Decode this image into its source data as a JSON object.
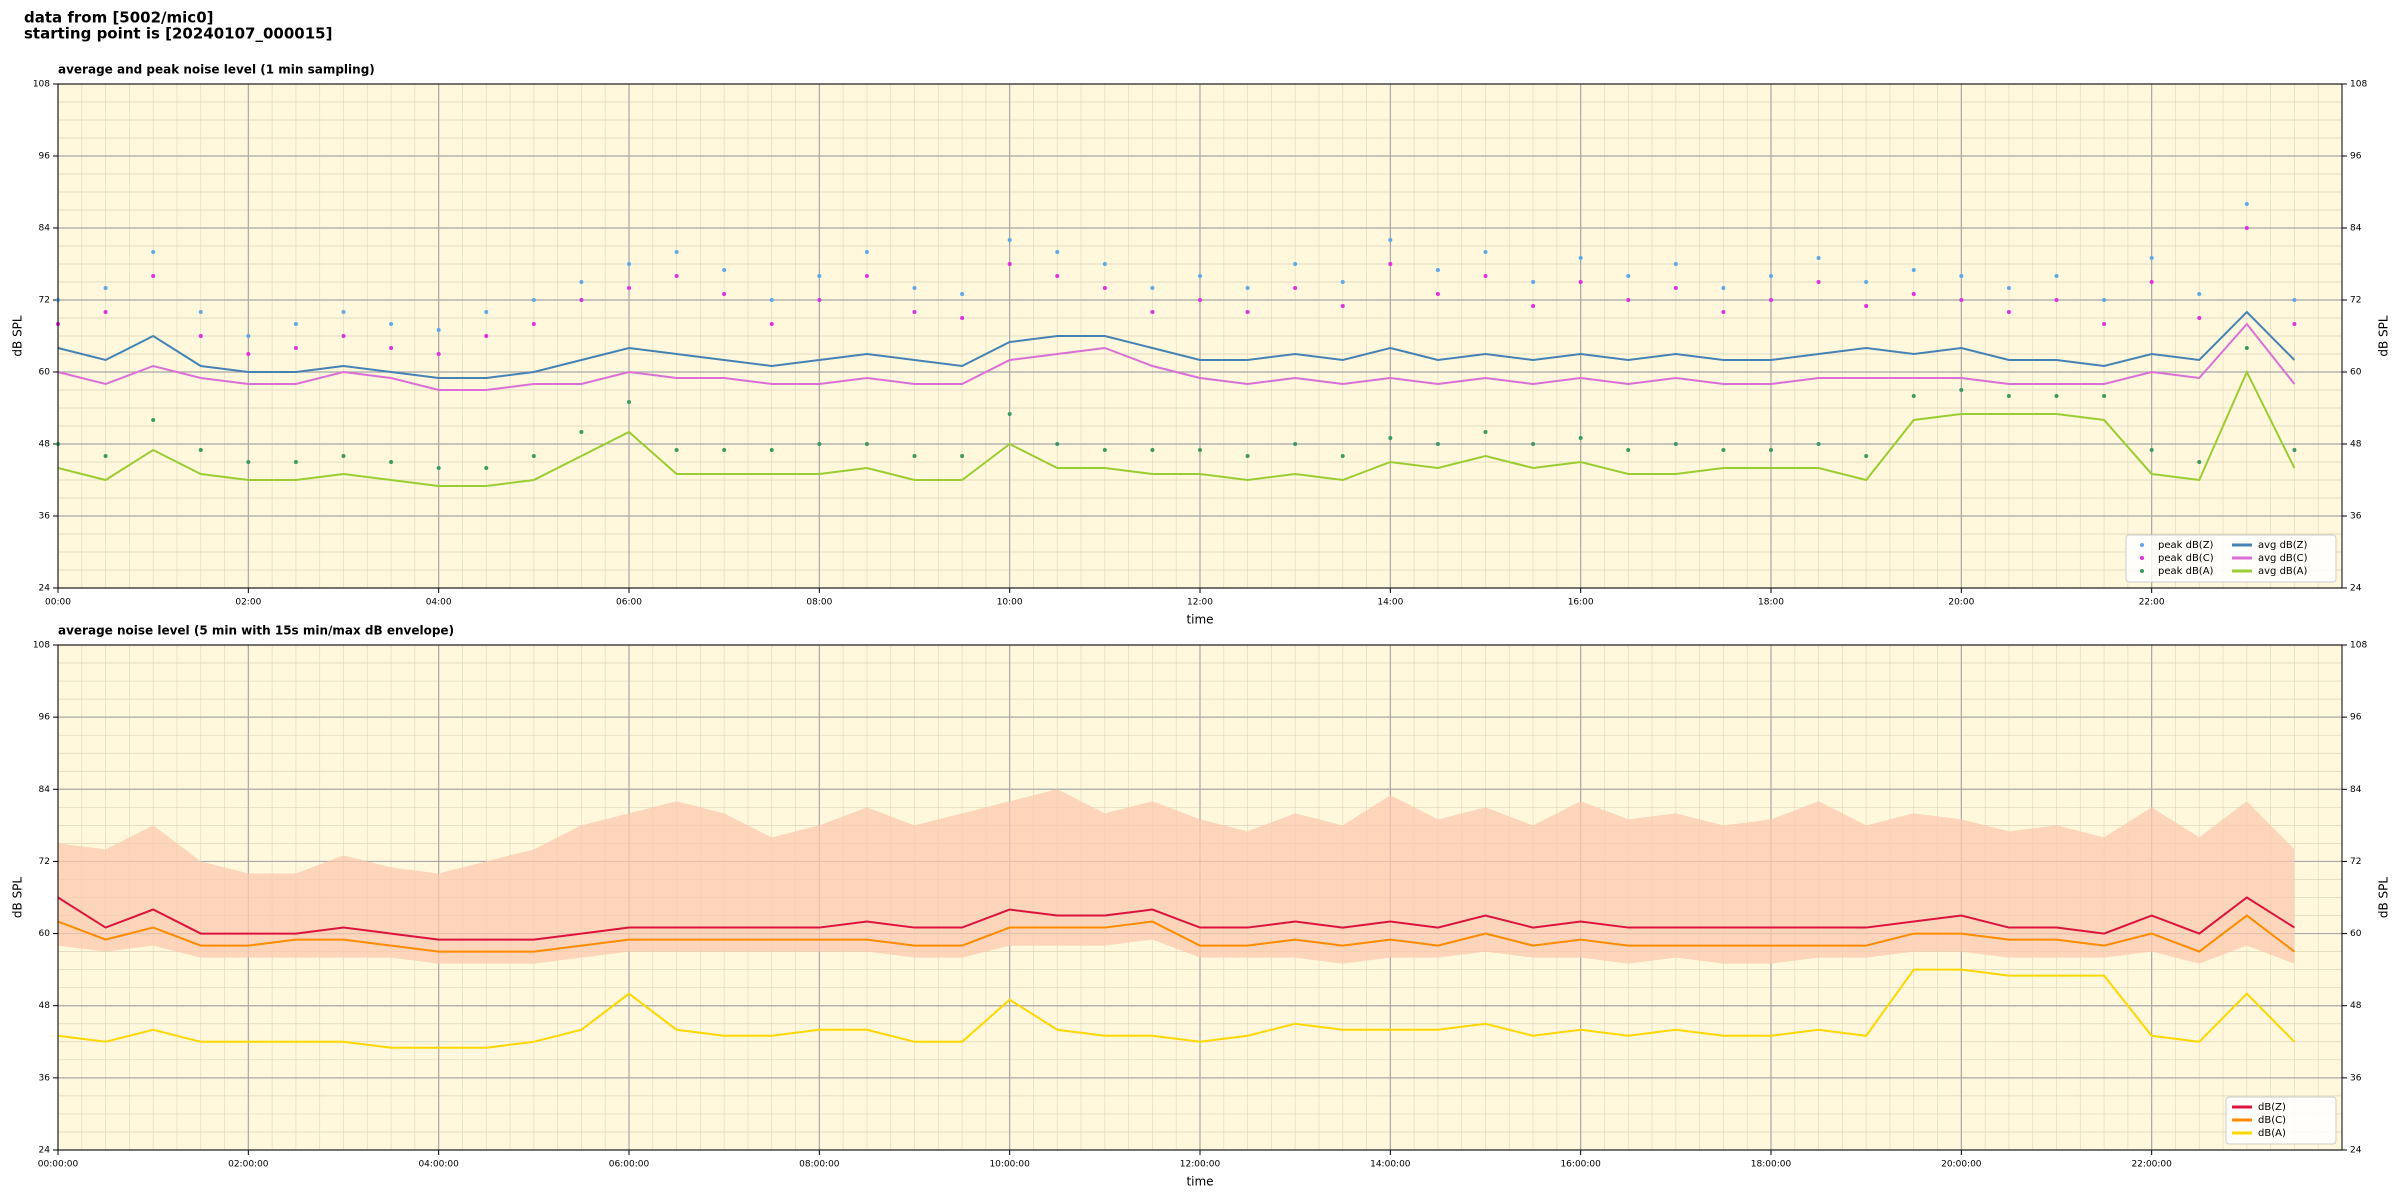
{
  "header": [
    "data from [5002/mic0]",
    "starting point is [20240107_000015]"
  ],
  "chart_data": [
    {
      "type": "line",
      "title": "average and peak noise level (1 min sampling)",
      "xlabel": "time",
      "ylabel": "dB SPL",
      "y2label": "dB SPL",
      "background": "#fff8dc",
      "grid": true,
      "minor_grid": true,
      "legend": "lower right",
      "legend_columns": 2,
      "xlim": [
        0,
        24
      ],
      "ylim": [
        24,
        108
      ],
      "y2lim": [
        24,
        108
      ],
      "xticks": [
        {
          "value": 0,
          "label": "00:00"
        },
        {
          "value": 2,
          "label": "02:00"
        },
        {
          "value": 4,
          "label": "04:00"
        },
        {
          "value": 6,
          "label": "06:00"
        },
        {
          "value": 8,
          "label": "08:00"
        },
        {
          "value": 10,
          "label": "10:00"
        },
        {
          "value": 12,
          "label": "12:00"
        },
        {
          "value": 14,
          "label": "14:00"
        },
        {
          "value": 16,
          "label": "16:00"
        },
        {
          "value": 18,
          "label": "18:00"
        },
        {
          "value": 20,
          "label": "20:00"
        },
        {
          "value": 22,
          "label": "22:00"
        }
      ],
      "yticks": [
        24,
        36,
        48,
        60,
        72,
        84,
        96,
        108
      ],
      "y2ticks": [
        24,
        36,
        48,
        60,
        72,
        84,
        96,
        108
      ],
      "x": [
        0,
        0.5,
        1,
        1.5,
        2,
        2.5,
        3,
        3.5,
        4,
        4.5,
        5,
        5.5,
        6,
        6.5,
        7,
        7.5,
        8,
        8.5,
        9,
        9.5,
        10,
        10.5,
        11,
        11.5,
        12,
        12.5,
        13,
        13.5,
        14,
        14.5,
        15,
        15.5,
        16,
        16.5,
        17,
        17.5,
        18,
        18.5,
        19,
        19.5,
        20,
        20.5,
        21,
        21.5,
        22,
        22.5,
        23,
        23.5
      ],
      "series": [
        {
          "name": "peak dB(Z)",
          "style": "points",
          "color": "#5fa8e8",
          "values": [
            72,
            74,
            80,
            70,
            66,
            68,
            70,
            68,
            67,
            70,
            72,
            75,
            78,
            80,
            77,
            72,
            76,
            80,
            74,
            73,
            82,
            80,
            78,
            74,
            76,
            74,
            78,
            75,
            82,
            77,
            80,
            75,
            79,
            76,
            78,
            74,
            76,
            79,
            75,
            77,
            76,
            74,
            76,
            72,
            79,
            73,
            88,
            72
          ]
        },
        {
          "name": "peak dB(C)",
          "style": "points",
          "color": "#e030e0",
          "values": [
            68,
            70,
            76,
            66,
            63,
            64,
            66,
            64,
            63,
            66,
            68,
            72,
            74,
            76,
            73,
            68,
            72,
            76,
            70,
            69,
            78,
            76,
            74,
            70,
            72,
            70,
            74,
            71,
            78,
            73,
            76,
            71,
            75,
            72,
            74,
            70,
            72,
            75,
            71,
            73,
            72,
            70,
            72,
            68,
            75,
            69,
            84,
            68
          ]
        },
        {
          "name": "peak dB(A)",
          "style": "points",
          "color": "#3c9a60",
          "values": [
            48,
            46,
            52,
            47,
            45,
            45,
            46,
            45,
            44,
            44,
            46,
            50,
            55,
            47,
            47,
            47,
            48,
            48,
            46,
            46,
            53,
            48,
            47,
            47,
            47,
            46,
            48,
            46,
            49,
            48,
            50,
            48,
            49,
            47,
            48,
            47,
            47,
            48,
            46,
            56,
            57,
            56,
            56,
            56,
            47,
            45,
            64,
            47
          ]
        },
        {
          "name": "avg dB(Z)",
          "style": "line",
          "color": "#4682b4",
          "values": [
            64,
            62,
            66,
            61,
            60,
            60,
            61,
            60,
            59,
            59,
            60,
            62,
            64,
            63,
            62,
            61,
            62,
            63,
            62,
            61,
            65,
            66,
            66,
            64,
            62,
            62,
            63,
            62,
            64,
            62,
            63,
            62,
            63,
            62,
            63,
            62,
            62,
            63,
            64,
            63,
            64,
            62,
            62,
            61,
            63,
            62,
            70,
            62
          ]
        },
        {
          "name": "avg dB(C)",
          "style": "line",
          "color": "#da70d6",
          "values": [
            60,
            58,
            61,
            59,
            58,
            58,
            60,
            59,
            57,
            57,
            58,
            58,
            60,
            59,
            59,
            58,
            58,
            59,
            58,
            58,
            62,
            63,
            64,
            61,
            59,
            58,
            59,
            58,
            59,
            58,
            59,
            58,
            59,
            58,
            59,
            58,
            58,
            59,
            59,
            59,
            59,
            58,
            58,
            58,
            60,
            59,
            68,
            58
          ]
        },
        {
          "name": "avg dB(A)",
          "style": "line",
          "color": "#9acd32",
          "values": [
            44,
            42,
            47,
            43,
            42,
            42,
            43,
            42,
            41,
            41,
            42,
            46,
            50,
            43,
            43,
            43,
            43,
            44,
            42,
            42,
            48,
            44,
            44,
            43,
            43,
            42,
            43,
            42,
            45,
            44,
            46,
            44,
            45,
            43,
            43,
            44,
            44,
            44,
            42,
            52,
            53,
            53,
            53,
            52,
            43,
            42,
            60,
            44
          ]
        }
      ]
    },
    {
      "type": "line",
      "title": "average noise level (5 min with 15s min/max dB envelope)",
      "xlabel": "time",
      "ylabel": "dB SPL",
      "y2label": "dB SPL",
      "background": "#fff8dc",
      "grid": true,
      "minor_grid": true,
      "legend": "lower right",
      "legend_columns": 1,
      "xlim": [
        0,
        24
      ],
      "ylim": [
        24,
        108
      ],
      "y2lim": [
        24,
        108
      ],
      "xticks": [
        {
          "value": 0,
          "label": "00:00:00"
        },
        {
          "value": 2,
          "label": "02:00:00"
        },
        {
          "value": 4,
          "label": "04:00:00"
        },
        {
          "value": 6,
          "label": "06:00:00"
        },
        {
          "value": 8,
          "label": "08:00:00"
        },
        {
          "value": 10,
          "label": "10:00:00"
        },
        {
          "value": 12,
          "label": "12:00:00"
        },
        {
          "value": 14,
          "label": "14:00:00"
        },
        {
          "value": 16,
          "label": "16:00:00"
        },
        {
          "value": 18,
          "label": "18:00:00"
        },
        {
          "value": 20,
          "label": "20:00:00"
        },
        {
          "value": 22,
          "label": "22:00:00"
        }
      ],
      "yticks": [
        24,
        36,
        48,
        60,
        72,
        84,
        96,
        108
      ],
      "y2ticks": [
        24,
        36,
        48,
        60,
        72,
        84,
        96,
        108
      ],
      "x": [
        0,
        0.5,
        1,
        1.5,
        2,
        2.5,
        3,
        3.5,
        4,
        4.5,
        5,
        5.5,
        6,
        6.5,
        7,
        7.5,
        8,
        8.5,
        9,
        9.5,
        10,
        10.5,
        11,
        11.5,
        12,
        12.5,
        13,
        13.5,
        14,
        14.5,
        15,
        15.5,
        16,
        16.5,
        17,
        17.5,
        18,
        18.5,
        19,
        19.5,
        20,
        20.5,
        21,
        21.5,
        22,
        22.5,
        23,
        23.5
      ],
      "envelope": {
        "color": "#fbc9b0",
        "min": [
          58,
          57,
          58,
          56,
          56,
          56,
          56,
          56,
          55,
          55,
          55,
          56,
          57,
          57,
          57,
          57,
          57,
          57,
          56,
          56,
          58,
          58,
          58,
          59,
          56,
          56,
          56,
          55,
          56,
          56,
          57,
          56,
          56,
          55,
          56,
          55,
          55,
          56,
          56,
          57,
          57,
          56,
          56,
          56,
          57,
          55,
          58,
          55
        ],
        "max": [
          75,
          74,
          78,
          72,
          70,
          70,
          73,
          71,
          70,
          72,
          74,
          78,
          80,
          82,
          80,
          76,
          78,
          81,
          78,
          80,
          82,
          84,
          80,
          82,
          79,
          77,
          80,
          78,
          83,
          79,
          81,
          78,
          82,
          79,
          80,
          78,
          79,
          82,
          78,
          80,
          79,
          77,
          78,
          76,
          81,
          76,
          82,
          74
        ]
      },
      "series": [
        {
          "name": "dB(Z)",
          "style": "line",
          "color": "#dc143c",
          "values": [
            66,
            61,
            64,
            60,
            60,
            60,
            61,
            60,
            59,
            59,
            59,
            60,
            61,
            61,
            61,
            61,
            61,
            62,
            61,
            61,
            64,
            63,
            63,
            64,
            61,
            61,
            62,
            61,
            62,
            61,
            63,
            61,
            62,
            61,
            61,
            61,
            61,
            61,
            61,
            62,
            63,
            61,
            61,
            60,
            63,
            60,
            66,
            61
          ]
        },
        {
          "name": "dB(C)",
          "style": "line",
          "color": "#ff8c00",
          "values": [
            62,
            59,
            61,
            58,
            58,
            59,
            59,
            58,
            57,
            57,
            57,
            58,
            59,
            59,
            59,
            59,
            59,
            59,
            58,
            58,
            61,
            61,
            61,
            62,
            58,
            58,
            59,
            58,
            59,
            58,
            60,
            58,
            59,
            58,
            58,
            58,
            58,
            58,
            58,
            60,
            60,
            59,
            59,
            58,
            60,
            57,
            63,
            57
          ]
        },
        {
          "name": "dB(A)",
          "style": "line",
          "color": "#ffd700",
          "values": [
            43,
            42,
            44,
            42,
            42,
            42,
            42,
            41,
            41,
            41,
            42,
            44,
            50,
            44,
            43,
            43,
            44,
            44,
            42,
            42,
            49,
            44,
            43,
            43,
            42,
            43,
            45,
            44,
            44,
            44,
            45,
            43,
            44,
            43,
            44,
            43,
            43,
            44,
            43,
            54,
            54,
            53,
            53,
            53,
            43,
            42,
            50,
            42
          ]
        }
      ]
    }
  ]
}
